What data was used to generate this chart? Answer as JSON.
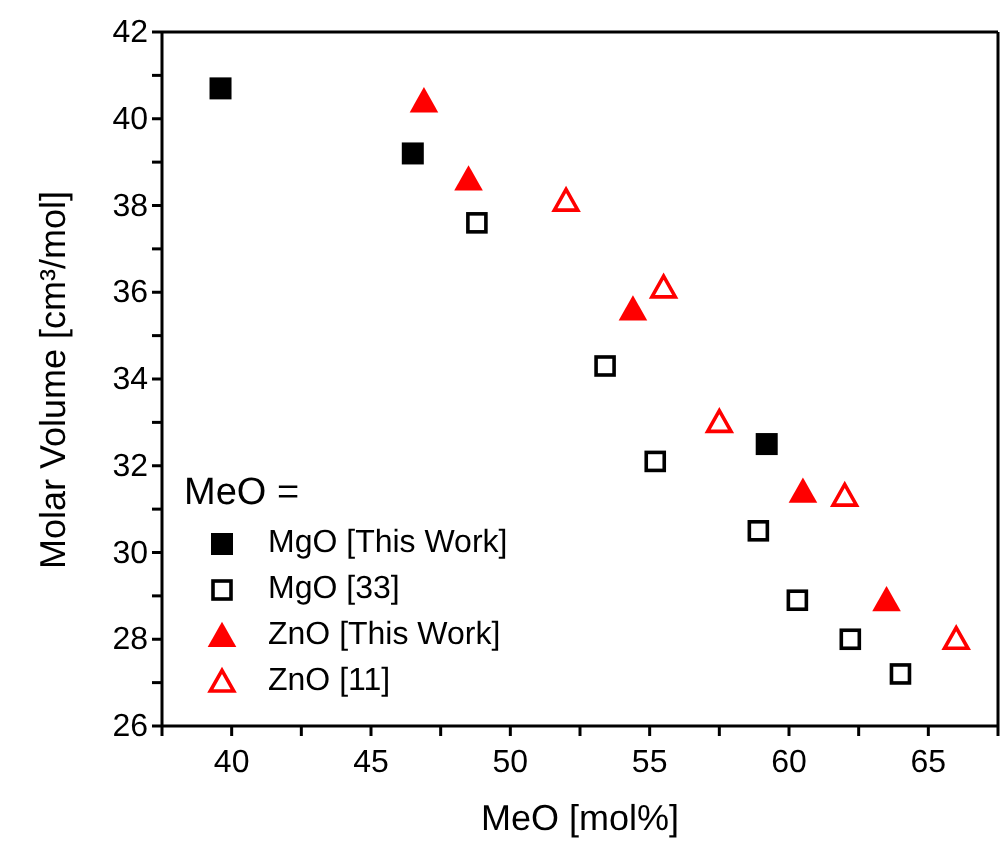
{
  "chart_data": {
    "type": "scatter",
    "xlabel": "MeO [mol%]",
    "ylabel": "Molar Volume [cm³/mol]",
    "legend_title": "MeO =",
    "legend": "bottom left",
    "xlim": [
      37.5,
      67.5
    ],
    "ylim": [
      26,
      42
    ],
    "xticks": [
      {
        "value": 37.5,
        "label": null
      },
      40,
      {
        "value": 42.5,
        "label": null
      },
      45,
      {
        "value": 47.5,
        "label": null
      },
      50,
      {
        "value": 52.5,
        "label": null
      },
      55,
      {
        "value": 57.5,
        "label": null
      },
      60,
      {
        "value": 62.5,
        "label": null
      },
      65,
      {
        "value": 67.5,
        "label": null
      }
    ],
    "yticks": [
      26,
      {
        "value": 27,
        "label": null
      },
      28,
      {
        "value": 29,
        "label": null
      },
      30,
      {
        "value": 31,
        "label": null
      },
      32,
      {
        "value": 33,
        "label": null
      },
      34,
      {
        "value": 35,
        "label": null
      },
      36,
      {
        "value": 37,
        "label": null
      },
      38,
      {
        "value": 39,
        "label": null
      },
      40,
      {
        "value": 41,
        "label": null
      },
      42
    ],
    "series": [
      {
        "name": "MgO [This Work]",
        "color": "#000000",
        "marker": "square",
        "x": [
          39.6,
          46.5,
          59.2
        ],
        "values": [
          40.7,
          39.2,
          32.5
        ]
      },
      {
        "name": "MgO [33]",
        "color": "#000000",
        "marker": "square-open",
        "x": [
          48.8,
          53.4,
          55.2,
          58.9,
          60.3,
          62.2,
          64.0
        ],
        "values": [
          37.6,
          34.3,
          32.1,
          30.5,
          28.9,
          28.0,
          27.2
        ]
      },
      {
        "name": "ZnO [This Work]",
        "color": "#ff0000",
        "marker": "triangle",
        "x": [
          46.9,
          48.5,
          54.4,
          60.5,
          63.5
        ],
        "values": [
          40.4,
          38.6,
          35.6,
          31.4,
          28.9
        ]
      },
      {
        "name": "ZnO [11]",
        "color": "#ff0000",
        "marker": "triangle-open",
        "x": [
          52.0,
          55.5,
          57.5,
          62.0,
          66.0
        ],
        "values": [
          38.1,
          36.1,
          33.0,
          31.3,
          28.0
        ]
      }
    ]
  }
}
